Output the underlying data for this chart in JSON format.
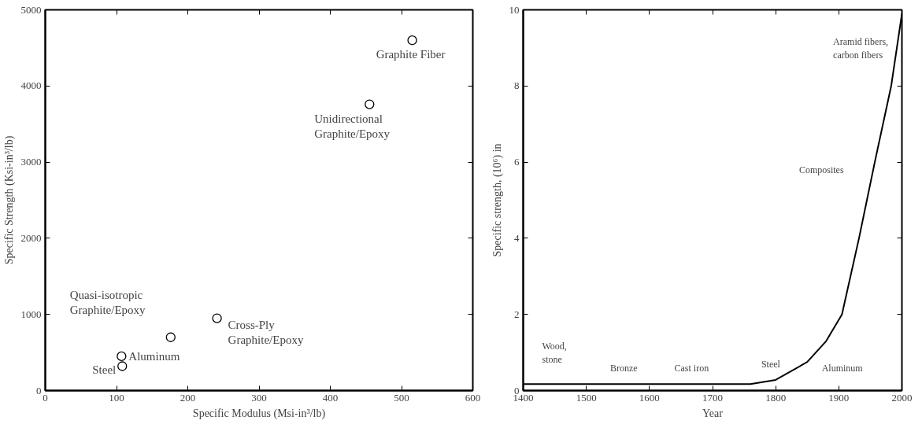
{
  "chart_data": [
    {
      "type": "scatter",
      "xlabel": "Specific Modulus (Msi-in³/lb)",
      "ylabel": "Specific Strength (Ksi-in³/lb)",
      "marker": "circle",
      "grid": false,
      "x": [
        515,
        455,
        241,
        176,
        107,
        108
      ],
      "series": [
        {
          "color": "#000000",
          "values": [
            4600,
            3760,
            950,
            700,
            450,
            320
          ]
        }
      ],
      "xlim": [
        0,
        600
      ],
      "xticks": [
        0,
        100,
        200,
        300,
        400,
        500,
        600
      ],
      "ylim": [
        0,
        5000
      ],
      "yticks": [
        0,
        1000,
        2000,
        3000,
        4000,
        5000
      ],
      "annotations": [
        {
          "text": "Graphite Fiber",
          "x": 515,
          "y": 4600
        },
        {
          "text": "Unidirectional\nGraphite/Epoxy",
          "x": 455,
          "y": 3760
        },
        {
          "text": "Cross-Ply\nGraphite/Epoxy",
          "x": 241,
          "y": 950
        },
        {
          "text": "Quasi-isotropic\nGraphite/Epoxy",
          "x": 176,
          "y": 700
        },
        {
          "text": "Aluminum",
          "x": 107,
          "y": 450
        },
        {
          "text": "Steel",
          "x": 108,
          "y": 320
        }
      ]
    },
    {
      "type": "line",
      "xlabel": "Year",
      "ylabel": "Specific strength, (10⁶) in",
      "grid": false,
      "marker": "none",
      "line_style": "solid",
      "x": [
        1400,
        1760,
        1800,
        1850,
        1880,
        1905,
        1932,
        1957,
        1983,
        2000
      ],
      "series": [
        {
          "color": "#000000",
          "values": [
            0.17,
            0.17,
            0.28,
            0.75,
            1.3,
            2,
            4,
            6,
            8,
            9.9
          ]
        }
      ],
      "xlim": [
        1400,
        2000
      ],
      "xticks": [
        1400,
        1500,
        1600,
        1700,
        1800,
        1900,
        2000
      ],
      "ylim": [
        0,
        10
      ],
      "yticks": [
        0,
        2,
        4,
        6,
        8,
        10
      ],
      "annotations": [
        "Wood,\nstone",
        "Bronze",
        "Cast iron",
        "Steel",
        "Aluminum",
        "Composites",
        "Aramid fibers,\ncarbon fibers"
      ]
    }
  ]
}
